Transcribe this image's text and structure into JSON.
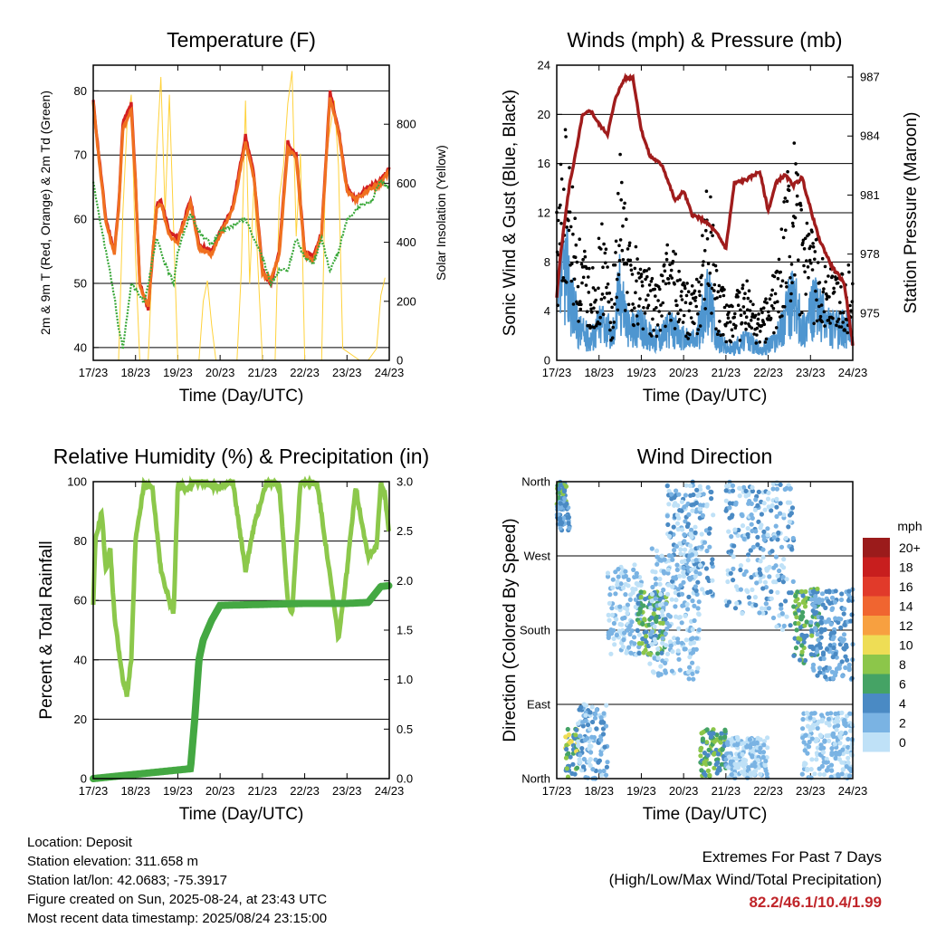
{
  "x_ticks": [
    "17/23",
    "18/23",
    "19/23",
    "20/23",
    "21/23",
    "22/23",
    "23/23",
    "24/23"
  ],
  "info": {
    "location": "Location: Deposit",
    "elevation": "Station elevation: 311.658 m",
    "latlon": "Station lat/lon: 42.0683; -75.3917",
    "created": "Figure created on Sun, 2025-08-24, at 23:43 UTC",
    "recent": "Most recent data timestamp: 2025/08/24 23:15:00"
  },
  "extremes": {
    "title": "Extremes For Past 7 Days",
    "subtitle": "(High/Low/Max Wind/Total Precipitation)",
    "values": "82.2/46.1/10.4/1.99",
    "color": "#c0252a"
  },
  "chart_data": [
    {
      "type": "line",
      "title": "Temperature (F)",
      "xlabel": "Time (Day/UTC)",
      "ylabel": "2m & 9m T (Red, Orange) & 2m Td (Green)",
      "ylabel_right": "Solar Insolation (Yellow)",
      "ylim": [
        38,
        84
      ],
      "ylim_right": [
        0,
        1000
      ],
      "yticks": [
        40,
        50,
        60,
        70,
        80
      ],
      "yticks_right": [
        0,
        200,
        400,
        600,
        800
      ],
      "series": [
        {
          "color": "#d42020",
          "x": [
            0,
            0.1,
            0.3,
            0.5,
            0.6,
            0.7,
            0.9,
            1.0,
            1.1,
            1.3,
            1.5,
            1.6,
            1.8,
            2.0,
            2.3,
            2.5,
            2.8,
            3.0,
            3.3,
            3.6,
            3.8,
            4.0,
            4.2,
            4.4,
            4.6,
            4.8,
            5.0,
            5.2,
            5.4,
            5.6,
            5.8,
            6.0,
            6.2,
            6.5,
            6.8,
            7.0
          ],
          "y": [
            78.5,
            72,
            60,
            55,
            62,
            75,
            78,
            66,
            50,
            46,
            62,
            63,
            58,
            57,
            63,
            56,
            55,
            58,
            62,
            73,
            67,
            52,
            50,
            55,
            72,
            70,
            55,
            54,
            58,
            80,
            74,
            65,
            63,
            65,
            66,
            68
          ]
        },
        {
          "color": "#f07020",
          "x": [
            0,
            0.1,
            0.3,
            0.5,
            0.6,
            0.7,
            0.9,
            1.0,
            1.1,
            1.3,
            1.5,
            1.6,
            1.8,
            2.0,
            2.3,
            2.5,
            2.8,
            3.0,
            3.3,
            3.6,
            3.8,
            4.0,
            4.2,
            4.4,
            4.6,
            4.8,
            5.0,
            5.2,
            5.4,
            5.6,
            5.8,
            6.0,
            6.2,
            6.5,
            6.8,
            7.0
          ],
          "y": [
            78,
            71.5,
            59.5,
            54.5,
            61.5,
            74,
            77,
            65.5,
            49.5,
            46.5,
            61.5,
            62.5,
            57.5,
            56.5,
            62.5,
            55.5,
            54.5,
            57.5,
            61.5,
            72,
            66.5,
            51.5,
            50.5,
            54.5,
            71,
            69.5,
            54.5,
            53.5,
            57.5,
            79,
            73.5,
            64.5,
            63,
            64.5,
            65.5,
            67.5
          ]
        },
        {
          "color": "#3aa83a",
          "x": [
            0,
            0.1,
            0.3,
            0.5,
            0.6,
            0.7,
            0.8,
            0.9,
            1.0,
            1.1,
            1.2,
            1.3,
            1.5,
            1.7,
            1.9,
            2.0,
            2.3,
            2.5,
            2.8,
            3.0,
            3.3,
            3.6,
            3.8,
            4.0,
            4.2,
            4.4,
            4.6,
            4.8,
            5.0,
            5.2,
            5.4,
            5.6,
            5.8,
            6.0,
            6.3,
            6.6,
            6.8,
            7.0
          ],
          "y": [
            66,
            62,
            55,
            48,
            43,
            40,
            45,
            50,
            49,
            48,
            47,
            50,
            57,
            53,
            50,
            55,
            61,
            58,
            56,
            58,
            59,
            60,
            57,
            54,
            50,
            52,
            52,
            57,
            54,
            53,
            57,
            52,
            55,
            60,
            62,
            63,
            66,
            65
          ]
        }
      ],
      "solar": {
        "color": "#ffd23c",
        "x": [
          0.6,
          0.7,
          0.8,
          0.9,
          1.0,
          1.1,
          1.3,
          1.5,
          1.6,
          1.7,
          1.8,
          2.0,
          2.5,
          2.6,
          2.7,
          2.8,
          2.9,
          3.0,
          3.4,
          3.5,
          3.6,
          3.7,
          3.8,
          4.0,
          4.3,
          4.4,
          4.5,
          4.6,
          4.7,
          4.8,
          4.9,
          5.0,
          5.4,
          5.5,
          5.6,
          5.7,
          5.8,
          5.9,
          6.3,
          6.5,
          6.7,
          6.8,
          6.9
        ],
        "y": [
          0,
          500,
          800,
          900,
          350,
          0,
          0,
          700,
          960,
          500,
          900,
          0,
          0,
          200,
          270,
          120,
          0,
          0,
          0,
          300,
          880,
          260,
          600,
          0,
          0,
          550,
          660,
          870,
          980,
          420,
          700,
          0,
          0,
          700,
          780,
          880,
          660,
          40,
          0,
          0,
          40,
          220,
          280
        ]
      }
    },
    {
      "type": "scatter",
      "title": "Winds (mph) & Pressure (mb)",
      "xlabel": "Time (Day/UTC)",
      "ylabel": "Sonic Wind & Gust (Blue, Black)",
      "ylabel_right": "Station Pressure (Maroon)",
      "ylim": [
        0,
        24
      ],
      "ylim_right": [
        972.6,
        987.6
      ],
      "yticks": [
        0,
        4,
        8,
        12,
        16,
        20,
        24
      ],
      "yticks_right": [
        975,
        978,
        981,
        984,
        987
      ],
      "pressure": {
        "color": "#a01c1c",
        "x": [
          0,
          0.1,
          0.3,
          0.5,
          0.6,
          0.8,
          1.0,
          1.2,
          1.4,
          1.6,
          1.8,
          2.0,
          2.2,
          2.5,
          2.8,
          3.0,
          3.2,
          3.4,
          3.6,
          3.8,
          4.0,
          4.2,
          4.5,
          4.8,
          5.0,
          5.2,
          5.4,
          5.6,
          5.8,
          6.0,
          6.2,
          6.5,
          6.8,
          7.0
        ],
        "y": [
          975.8,
          978.2,
          981.5,
          983.7,
          985.0,
          985.3,
          984.6,
          984.1,
          986.0,
          986.9,
          987.0,
          984.3,
          983.0,
          982.5,
          980.7,
          981.2,
          980.0,
          979.8,
          979.5,
          979.0,
          978.3,
          981.6,
          981.8,
          982.2,
          980.2,
          981.7,
          982.0,
          981.5,
          981.9,
          980.3,
          978.8,
          977.4,
          976.5,
          973.4
        ]
      },
      "wind_envelope": [
        [
          0,
          5
        ],
        [
          0.2,
          9
        ],
        [
          0.5,
          3
        ],
        [
          0.8,
          2
        ],
        [
          1.1,
          4
        ],
        [
          1.3,
          2
        ],
        [
          1.5,
          7
        ],
        [
          1.7,
          3
        ],
        [
          2.0,
          3
        ],
        [
          2.3,
          2
        ],
        [
          2.7,
          3
        ],
        [
          3.0,
          2
        ],
        [
          3.3,
          2
        ],
        [
          3.6,
          6
        ],
        [
          3.8,
          2
        ],
        [
          4.1,
          1
        ],
        [
          4.5,
          2
        ],
        [
          4.8,
          1
        ],
        [
          5.2,
          2
        ],
        [
          5.6,
          6
        ],
        [
          5.8,
          3
        ],
        [
          6.1,
          5
        ],
        [
          6.5,
          3
        ],
        [
          6.9,
          3
        ],
        [
          7.0,
          2
        ]
      ],
      "gust_envelope": [
        [
          0,
          10
        ],
        [
          0.2,
          15
        ],
        [
          0.5,
          8
        ],
        [
          0.8,
          6
        ],
        [
          1.1,
          9
        ],
        [
          1.3,
          4
        ],
        [
          1.5,
          13
        ],
        [
          1.7,
          8
        ],
        [
          2.0,
          7
        ],
        [
          2.3,
          5
        ],
        [
          2.7,
          8
        ],
        [
          3.0,
          5
        ],
        [
          3.3,
          5
        ],
        [
          3.6,
          12
        ],
        [
          3.8,
          5
        ],
        [
          4.1,
          4
        ],
        [
          4.5,
          5
        ],
        [
          4.8,
          3
        ],
        [
          5.2,
          6
        ],
        [
          5.6,
          15
        ],
        [
          5.8,
          9
        ],
        [
          6.1,
          8
        ],
        [
          6.5,
          6
        ],
        [
          6.9,
          6
        ],
        [
          7.0,
          5
        ]
      ],
      "wind_color": "#4f96d0",
      "gust_color": "#000000"
    },
    {
      "type": "line",
      "title": "Relative Humidity (%) & Precipitation (in)",
      "xlabel": "Time (Day/UTC)",
      "ylabel": "Percent & Total Rainfall",
      "ylim": [
        0,
        100
      ],
      "ylim_right": [
        0,
        3.0
      ],
      "yticks": [
        0,
        20,
        40,
        60,
        80,
        100
      ],
      "yticks_right": [
        "0.0",
        "0.5",
        "1.0",
        "1.5",
        "2.0",
        "2.5",
        "3.0"
      ],
      "series": [
        {
          "color": "#8cc84b",
          "x": [
            0,
            0.05,
            0.2,
            0.3,
            0.4,
            0.5,
            0.7,
            0.8,
            0.9,
            1.0,
            1.2,
            1.4,
            1.6,
            1.9,
            2.0,
            2.2,
            2.4,
            2.6,
            2.8,
            3.0,
            3.3,
            3.6,
            3.8,
            4.1,
            4.2,
            4.4,
            4.6,
            4.7,
            4.9,
            5.1,
            5.3,
            5.6,
            5.8,
            6.0,
            6.2,
            6.5,
            6.7,
            6.8,
            6.9,
            7.0
          ],
          "y": [
            58,
            80,
            90,
            70,
            78,
            55,
            33,
            28,
            40,
            80,
            99,
            98,
            70,
            55,
            99,
            97,
            100,
            100,
            99,
            98,
            100,
            70,
            85,
            100,
            100,
            99,
            60,
            55,
            100,
            100,
            99,
            68,
            47,
            70,
            98,
            75,
            78,
            100,
            95,
            82
          ]
        },
        {
          "color": "#44a842",
          "x": [
            0,
            2.3,
            2.4,
            2.5,
            2.6,
            2.8,
            3.0,
            4.0,
            5.0,
            5.5,
            6.0,
            6.5,
            6.8,
            7.0
          ],
          "y": [
            0,
            0.1,
            0.6,
            1.2,
            1.4,
            1.6,
            1.75,
            1.76,
            1.77,
            1.77,
            1.77,
            1.78,
            1.94,
            1.95
          ]
        }
      ]
    },
    {
      "type": "scatter",
      "title": "Wind Direction",
      "xlabel": "Time (Day/UTC)",
      "ylabel": "Direction (Colored By Speed)",
      "yticks": [
        "North",
        "East",
        "South",
        "West",
        "North"
      ],
      "ylim": [
        0,
        360
      ],
      "legend": {
        "title": "mph",
        "labels": [
          "20+",
          "18",
          "16",
          "14",
          "12",
          "10",
          "8",
          "6",
          "4",
          "2",
          "0"
        ],
        "colors": [
          "#9b1b1b",
          "#c81e1e",
          "#e13a2a",
          "#f06530",
          "#f7a040",
          "#eedd55",
          "#8cc64a",
          "#45a365",
          "#4a8ac4",
          "#7ab3e3",
          "#bfe1f7"
        ]
      },
      "clusters": [
        {
          "x": [
            0,
            0.25
          ],
          "y": [
            330,
            360
          ],
          "colors": [
            "#45a365",
            "#4a8ac4",
            "#8cc64a"
          ]
        },
        {
          "x": [
            0,
            0.3
          ],
          "y": [
            300,
            340
          ],
          "colors": [
            "#4a8ac4",
            "#7ab3e3"
          ]
        },
        {
          "x": [
            0.2,
            0.5
          ],
          "y": [
            0,
            60
          ],
          "colors": [
            "#45a365",
            "#4a8ac4",
            "#8cc64a",
            "#eedd55"
          ]
        },
        {
          "x": [
            0.5,
            1.2
          ],
          "y": [
            0,
            90
          ],
          "colors": [
            "#4a8ac4",
            "#7ab3e3",
            "#bfe1f7"
          ]
        },
        {
          "x": [
            1.2,
            2.0
          ],
          "y": [
            150,
            260
          ],
          "colors": [
            "#7ab3e3",
            "#bfe1f7"
          ]
        },
        {
          "x": [
            1.9,
            2.6
          ],
          "y": [
            150,
            230
          ],
          "colors": [
            "#45a365",
            "#4a8ac4",
            "#8cc64a"
          ]
        },
        {
          "x": [
            2.6,
            3.7
          ],
          "y": [
            220,
            360
          ],
          "colors": [
            "#4a8ac4",
            "#7ab3e3",
            "#bfe1f7"
          ]
        },
        {
          "x": [
            2.2,
            3.4
          ],
          "y": [
            120,
            280
          ],
          "colors": [
            "#7ab3e3",
            "#bfe1f7"
          ]
        },
        {
          "x": [
            3.4,
            4.0
          ],
          "y": [
            0,
            60
          ],
          "colors": [
            "#45a365",
            "#4a8ac4",
            "#8cc64a"
          ]
        },
        {
          "x": [
            4.0,
            5.0
          ],
          "y": [
            200,
            360
          ],
          "colors": [
            "#4a8ac4",
            "#7ab3e3",
            "#bfe1f7"
          ]
        },
        {
          "x": [
            4.0,
            5.0
          ],
          "y": [
            0,
            50
          ],
          "colors": [
            "#7ab3e3",
            "#bfe1f7"
          ]
        },
        {
          "x": [
            5.0,
            5.6
          ],
          "y": [
            180,
            360
          ],
          "colors": [
            "#7ab3e3",
            "#4a8ac4",
            "#bfe1f7"
          ]
        },
        {
          "x": [
            5.6,
            6.2
          ],
          "y": [
            140,
            230
          ],
          "colors": [
            "#45a365",
            "#4a8ac4",
            "#8cc64a"
          ]
        },
        {
          "x": [
            6.0,
            7.0
          ],
          "y": [
            120,
            230
          ],
          "colors": [
            "#4a8ac4",
            "#7ab3e3"
          ]
        },
        {
          "x": [
            5.8,
            7.0
          ],
          "y": [
            0,
            80
          ],
          "colors": [
            "#bfe1f7",
            "#7ab3e3"
          ]
        }
      ]
    }
  ]
}
